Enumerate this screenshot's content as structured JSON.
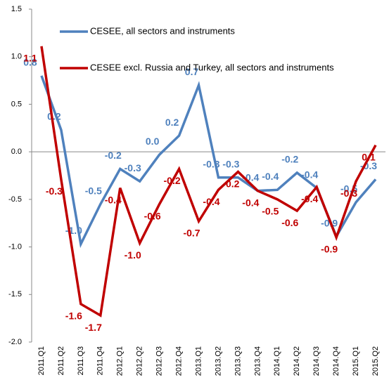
{
  "chart_data": {
    "type": "line",
    "categories": [
      "2011.Q1",
      "2011.Q2",
      "2011.Q3",
      "2011.Q4",
      "2012.Q1",
      "2012.Q2",
      "2012.Q3",
      "2012.Q4",
      "2013.Q1",
      "2013.Q2",
      "2013.Q3",
      "2013.Q4",
      "2014.Q1",
      "2014.Q2",
      "2014.Q3",
      "2014.Q4",
      "2015.Q1",
      "2015.Q2"
    ],
    "series": [
      {
        "name": "CESEE, all sectors and instruments",
        "color": "#4f81bd",
        "values": [
          0.8,
          0.23,
          -0.97,
          -0.55,
          -0.18,
          -0.31,
          -0.03,
          0.17,
          0.7,
          -0.27,
          -0.27,
          -0.41,
          -0.4,
          -0.22,
          -0.38,
          -0.89,
          -0.53,
          -0.29
        ],
        "value_labels": [
          "0.8",
          "0.2",
          "-1.0",
          "-0.5",
          "-0.2",
          "-0.3",
          "0.0",
          "0.2",
          "0.7",
          "-0.3",
          "-0.3",
          "-0.4",
          "-0.4",
          "-0.2",
          "-0.4",
          "-0.9",
          "-0.5",
          "-0.3"
        ]
      },
      {
        "name": "CESEE excl. Russia and Turkey, all sectors and instruments",
        "color": "#c00000",
        "values": [
          1.11,
          -0.29,
          -1.6,
          -1.72,
          -0.38,
          -0.96,
          -0.55,
          -0.18,
          -0.73,
          -0.4,
          -0.21,
          -0.41,
          -0.5,
          -0.62,
          -0.37,
          -0.9,
          -0.31,
          0.07
        ],
        "value_labels": [
          "1.1",
          "-0.3",
          "-1.6",
          "-1.7",
          "-0.4",
          "-1.0",
          "-0.6",
          "-0.2",
          "-0.7",
          "-0.4",
          "-0.2",
          "-0.4",
          "-0.5",
          "-0.6",
          "-0.4",
          "-0.9",
          "-0.3",
          "0.1"
        ]
      }
    ],
    "ylim": [
      -2.0,
      1.5
    ],
    "yticks": [
      {
        "value": -2.0,
        "label": "-2.0"
      },
      -1.5,
      {
        "value": -1.0,
        "label": "-1.0"
      },
      -0.5,
      {
        "value": 0,
        "label": "0.0"
      },
      0.5,
      {
        "value": 1.0,
        "label": "1.0"
      },
      1.5
    ],
    "grid": false
  }
}
